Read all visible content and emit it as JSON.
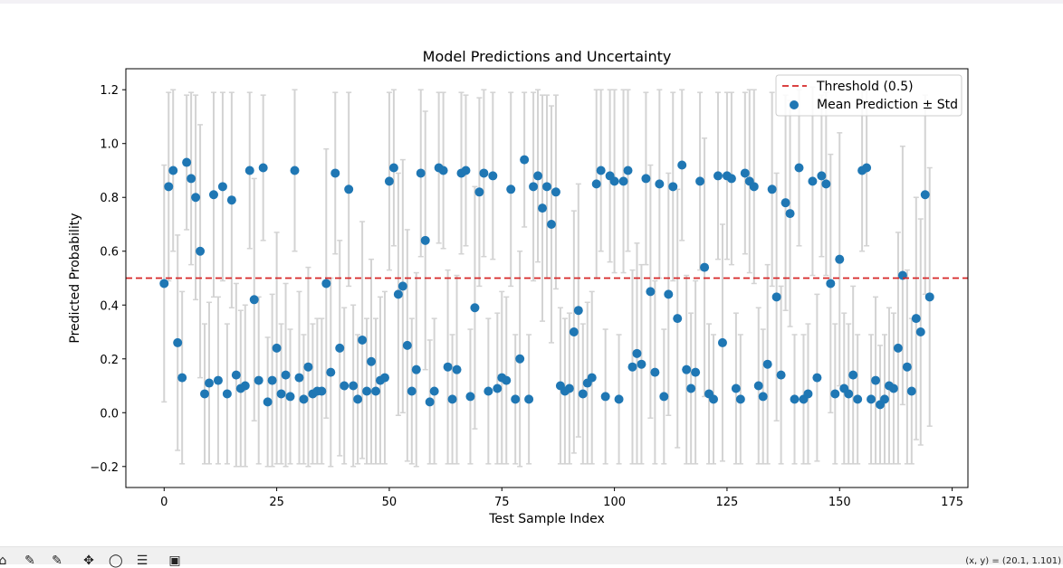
{
  "chart_data": {
    "type": "scatter",
    "title": "Model Predictions and Uncertainty",
    "xlabel": "Test Sample Index",
    "ylabel": "Predicted Probability",
    "xlim": [
      -8.5,
      178.5
    ],
    "ylim": [
      -0.278,
      1.278
    ],
    "xticks": [
      0,
      25,
      50,
      75,
      100,
      125,
      150,
      175
    ],
    "yticks": [
      -0.2,
      0.0,
      0.2,
      0.4,
      0.6,
      0.8,
      1.0,
      1.2
    ],
    "xtick_labels": [
      "0",
      "25",
      "50",
      "75",
      "100",
      "125",
      "150",
      "175"
    ],
    "ytick_labels": [
      "−0.2",
      "0.0",
      "0.2",
      "0.4",
      "0.6",
      "0.8",
      "1.0",
      "1.2"
    ],
    "grid": false,
    "legend_position": "top-right",
    "legend": [
      "Threshold (0.5)",
      "Mean Prediction ± Std"
    ],
    "threshold": 0.5,
    "series": [
      {
        "name": "Mean Prediction ± Std",
        "color": "#1f77b4",
        "error_color": "#d3d3d3",
        "x": [
          0,
          1,
          2,
          3,
          4,
          5,
          6,
          7,
          8,
          9,
          10,
          11,
          12,
          13,
          14,
          15,
          16,
          17,
          18,
          19,
          20,
          21,
          22,
          23,
          24,
          25,
          26,
          27,
          28,
          29,
          30,
          31,
          32,
          33,
          34,
          35,
          36,
          37,
          38,
          39,
          40,
          41,
          42,
          43,
          44,
          45,
          46,
          47,
          48,
          49,
          50,
          51,
          52,
          53,
          54,
          55,
          56,
          57,
          58,
          59,
          60,
          61,
          62,
          63,
          64,
          65,
          66,
          67,
          68,
          69,
          70,
          71,
          72,
          73,
          74,
          75,
          76,
          77,
          78,
          79,
          80,
          81,
          82,
          83,
          84,
          85,
          86,
          87,
          88,
          89,
          90,
          91,
          92,
          93,
          94,
          95,
          96,
          97,
          98,
          99,
          100,
          101,
          102,
          103,
          104,
          105,
          106,
          107,
          108,
          109,
          110,
          111,
          112,
          113,
          114,
          115,
          116,
          117,
          118,
          119,
          120,
          121,
          122,
          123,
          124,
          125,
          126,
          127,
          128,
          129,
          130,
          131,
          132,
          133,
          134,
          135,
          136,
          137,
          138,
          139,
          140,
          141,
          142,
          143,
          144,
          145,
          146,
          147,
          148,
          149,
          150,
          151,
          152,
          153,
          154,
          155,
          156,
          157,
          158,
          159,
          160,
          161,
          162,
          163,
          164,
          165,
          166,
          167,
          168,
          169,
          170
        ],
        "y": [
          0.48,
          0.84,
          0.9,
          0.26,
          0.13,
          0.93,
          0.87,
          0.8,
          0.6,
          0.07,
          0.11,
          0.81,
          0.12,
          0.84,
          0.07,
          0.79,
          0.14,
          0.09,
          0.1,
          0.9,
          0.42,
          0.12,
          0.91,
          0.04,
          0.12,
          0.24,
          0.07,
          0.14,
          0.06,
          0.9,
          0.13,
          0.05,
          0.17,
          0.07,
          0.08,
          0.08,
          0.48,
          0.15,
          0.89,
          0.24,
          0.1,
          0.83,
          0.1,
          0.05,
          0.27,
          0.08,
          0.19,
          0.08,
          0.12,
          0.13,
          0.86,
          0.91,
          0.44,
          0.47,
          0.25,
          0.08,
          0.16,
          0.89,
          0.64,
          0.04,
          0.08,
          0.91,
          0.9,
          0.17,
          0.05,
          0.16,
          0.89,
          0.9,
          0.06,
          0.39,
          0.82,
          0.89,
          0.08,
          0.88,
          0.09,
          0.13,
          0.12,
          0.83,
          0.05,
          0.2,
          0.94,
          0.05,
          0.84,
          0.88,
          0.76,
          0.84,
          0.7,
          0.82,
          0.1,
          0.08,
          0.09,
          0.3,
          0.38,
          0.07,
          0.11,
          0.13,
          0.85,
          0.9,
          0.06,
          0.88,
          0.86,
          0.05,
          0.86,
          0.9,
          0.17,
          0.22,
          0.18,
          0.87,
          0.45,
          0.15,
          0.85,
          0.06,
          0.44,
          0.84,
          0.35,
          0.92,
          0.16,
          0.09,
          0.15,
          0.86,
          0.54,
          0.07,
          0.05,
          0.88,
          0.26,
          0.88,
          0.87,
          0.09,
          0.05,
          0.89,
          0.86,
          0.84,
          0.1,
          0.06,
          0.18,
          0.83,
          0.43,
          0.14,
          0.78,
          0.74,
          0.05,
          0.91,
          0.05,
          0.07,
          0.86,
          0.13,
          0.88,
          0.85,
          0.48,
          0.07,
          0.57,
          0.09,
          0.07,
          0.14,
          0.05,
          0.9,
          0.91,
          0.05,
          0.12,
          0.03,
          0.05,
          0.1,
          0.09,
          0.24,
          0.51,
          0.17,
          0.08,
          0.35,
          0.3,
          0.81,
          0.43
        ],
        "std": [
          0.44,
          0.35,
          0.3,
          0.4,
          0.32,
          0.25,
          0.32,
          0.38,
          0.47,
          0.26,
          0.3,
          0.38,
          0.31,
          0.35,
          0.26,
          0.4,
          0.34,
          0.29,
          0.3,
          0.29,
          0.45,
          0.31,
          0.27,
          0.24,
          0.32,
          0.43,
          0.26,
          0.34,
          0.25,
          0.3,
          0.32,
          0.24,
          0.37,
          0.26,
          0.27,
          0.27,
          0.5,
          0.35,
          0.3,
          0.4,
          0.29,
          0.36,
          0.3,
          0.24,
          0.44,
          0.27,
          0.38,
          0.27,
          0.31,
          0.32,
          0.33,
          0.29,
          0.45,
          0.47,
          0.43,
          0.27,
          0.36,
          0.31,
          0.48,
          0.23,
          0.27,
          0.28,
          0.29,
          0.36,
          0.24,
          0.35,
          0.3,
          0.28,
          0.25,
          0.45,
          0.35,
          0.31,
          0.27,
          0.31,
          0.28,
          0.32,
          0.31,
          0.36,
          0.24,
          0.4,
          0.25,
          0.24,
          0.35,
          0.32,
          0.42,
          0.34,
          0.44,
          0.36,
          0.29,
          0.27,
          0.28,
          0.45,
          0.47,
          0.26,
          0.3,
          0.32,
          0.35,
          0.3,
          0.25,
          0.32,
          0.34,
          0.24,
          0.34,
          0.3,
          0.36,
          0.41,
          0.37,
          0.32,
          0.47,
          0.34,
          0.35,
          0.25,
          0.45,
          0.35,
          0.48,
          0.28,
          0.35,
          0.28,
          0.34,
          0.33,
          0.48,
          0.26,
          0.24,
          0.31,
          0.44,
          0.31,
          0.32,
          0.28,
          0.24,
          0.3,
          0.34,
          0.36,
          0.29,
          0.25,
          0.37,
          0.36,
          0.46,
          0.33,
          0.4,
          0.42,
          0.24,
          0.29,
          0.24,
          0.26,
          0.35,
          0.31,
          0.3,
          0.34,
          0.48,
          0.26,
          0.47,
          0.28,
          0.26,
          0.33,
          0.24,
          0.3,
          0.29,
          0.24,
          0.31,
          0.22,
          0.24,
          0.29,
          0.28,
          0.43,
          0.48,
          0.36,
          0.27,
          0.45,
          0.42,
          0.37,
          0.48
        ]
      }
    ]
  },
  "toolbar": {
    "coords_text": "(x, y) = (20.1, 1.101)"
  }
}
